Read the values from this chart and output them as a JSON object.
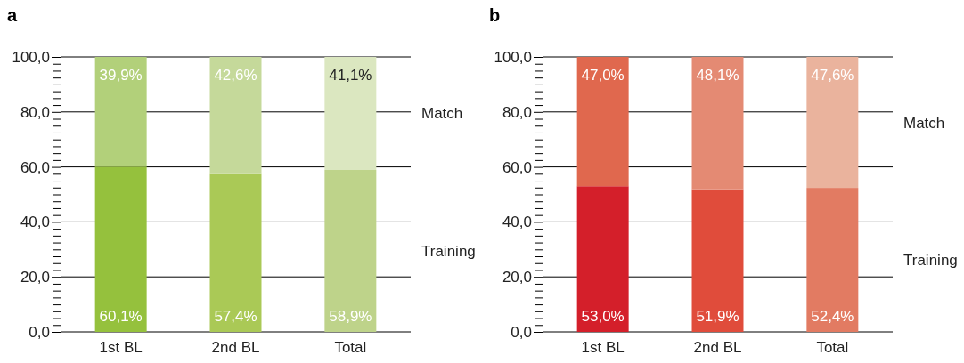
{
  "chart_data": [
    {
      "type": "bar",
      "title": "a",
      "stacked": true,
      "categories": [
        "1st BL",
        "2nd BL",
        "Total"
      ],
      "ylim": [
        0,
        100
      ],
      "yticks": [
        {
          "value": 0,
          "label": "0,0"
        },
        {
          "value": 2.5,
          "label": null
        },
        {
          "value": 5,
          "label": null
        },
        {
          "value": 7.5,
          "label": null
        },
        {
          "value": 10,
          "label": null
        },
        {
          "value": 12.5,
          "label": null
        },
        {
          "value": 15,
          "label": null
        },
        {
          "value": 17.5,
          "label": null
        },
        {
          "value": 20,
          "label": "20,0"
        },
        {
          "value": 22.5,
          "label": null
        },
        {
          "value": 25,
          "label": null
        },
        {
          "value": 27.5,
          "label": null
        },
        {
          "value": 30,
          "label": null
        },
        {
          "value": 32.5,
          "label": null
        },
        {
          "value": 35,
          "label": null
        },
        {
          "value": 37.5,
          "label": null
        },
        {
          "value": 40,
          "label": "40,0"
        },
        {
          "value": 42.5,
          "label": null
        },
        {
          "value": 45,
          "label": null
        },
        {
          "value": 47.5,
          "label": null
        },
        {
          "value": 50,
          "label": null
        },
        {
          "value": 52.5,
          "label": null
        },
        {
          "value": 55,
          "label": null
        },
        {
          "value": 57.5,
          "label": null
        },
        {
          "value": 60,
          "label": "60,0"
        },
        {
          "value": 62.5,
          "label": null
        },
        {
          "value": 65,
          "label": null
        },
        {
          "value": 67.5,
          "label": null
        },
        {
          "value": 70,
          "label": null
        },
        {
          "value": 72.5,
          "label": null
        },
        {
          "value": 75,
          "label": null
        },
        {
          "value": 77.5,
          "label": null
        },
        {
          "value": 80,
          "label": "80,0"
        },
        {
          "value": 82.5,
          "label": null
        },
        {
          "value": 85,
          "label": null
        },
        {
          "value": 87.5,
          "label": null
        },
        {
          "value": 90,
          "label": null
        },
        {
          "value": 92.5,
          "label": null
        },
        {
          "value": 95,
          "label": null
        },
        {
          "value": 97.5,
          "label": null
        },
        {
          "value": 100,
          "label": "100,0"
        }
      ],
      "grid": "y",
      "series": [
        {
          "name": "Training",
          "colors": [
            "#95c13d",
            "#aac956",
            "#bed38a"
          ],
          "values": [
            60.1,
            57.4,
            58.9
          ],
          "value_labels": [
            "60,1%",
            "57,4%",
            "58,9%"
          ]
        },
        {
          "name": "Match",
          "colors": [
            "#b2d07a",
            "#c5d99a",
            "#dbe7c0"
          ],
          "values": [
            39.9,
            42.6,
            41.1
          ],
          "value_labels": [
            "39,9%",
            "42,6%",
            "41,1%"
          ]
        }
      ]
    },
    {
      "type": "bar",
      "title": "b",
      "stacked": true,
      "categories": [
        "1st BL",
        "2nd BL",
        "Total"
      ],
      "ylim": [
        0,
        100
      ],
      "yticks": [
        {
          "value": 0,
          "label": "0,0"
        },
        {
          "value": 2.5,
          "label": null
        },
        {
          "value": 5,
          "label": null
        },
        {
          "value": 7.5,
          "label": null
        },
        {
          "value": 10,
          "label": null
        },
        {
          "value": 12.5,
          "label": null
        },
        {
          "value": 15,
          "label": null
        },
        {
          "value": 17.5,
          "label": null
        },
        {
          "value": 20,
          "label": "20,0"
        },
        {
          "value": 22.5,
          "label": null
        },
        {
          "value": 25,
          "label": null
        },
        {
          "value": 27.5,
          "label": null
        },
        {
          "value": 30,
          "label": null
        },
        {
          "value": 32.5,
          "label": null
        },
        {
          "value": 35,
          "label": null
        },
        {
          "value": 37.5,
          "label": null
        },
        {
          "value": 40,
          "label": "40,0"
        },
        {
          "value": 42.5,
          "label": null
        },
        {
          "value": 45,
          "label": null
        },
        {
          "value": 47.5,
          "label": null
        },
        {
          "value": 50,
          "label": null
        },
        {
          "value": 52.5,
          "label": null
        },
        {
          "value": 55,
          "label": null
        },
        {
          "value": 57.5,
          "label": null
        },
        {
          "value": 60,
          "label": "60,0"
        },
        {
          "value": 62.5,
          "label": null
        },
        {
          "value": 65,
          "label": null
        },
        {
          "value": 67.5,
          "label": null
        },
        {
          "value": 70,
          "label": null
        },
        {
          "value": 72.5,
          "label": null
        },
        {
          "value": 75,
          "label": null
        },
        {
          "value": 77.5,
          "label": null
        },
        {
          "value": 80,
          "label": "80,0"
        },
        {
          "value": 82.5,
          "label": null
        },
        {
          "value": 85,
          "label": null
        },
        {
          "value": 87.5,
          "label": null
        },
        {
          "value": 90,
          "label": null
        },
        {
          "value": 92.5,
          "label": null
        },
        {
          "value": 95,
          "label": null
        },
        {
          "value": 97.5,
          "label": null
        },
        {
          "value": 100,
          "label": "100,0"
        }
      ],
      "grid": "y",
      "series": [
        {
          "name": "Training",
          "colors": [
            "#d41f2a",
            "#e04c3b",
            "#e27b62"
          ],
          "values": [
            53.0,
            51.9,
            52.4
          ],
          "value_labels": [
            "53,0%",
            "51,9%",
            "52,4%"
          ]
        },
        {
          "name": "Match",
          "colors": [
            "#e0684e",
            "#e48a73",
            "#eab39d"
          ],
          "values": [
            47.0,
            48.1,
            47.6
          ],
          "value_labels": [
            "47,0%",
            "48,1%",
            "47,6%"
          ]
        }
      ]
    }
  ]
}
